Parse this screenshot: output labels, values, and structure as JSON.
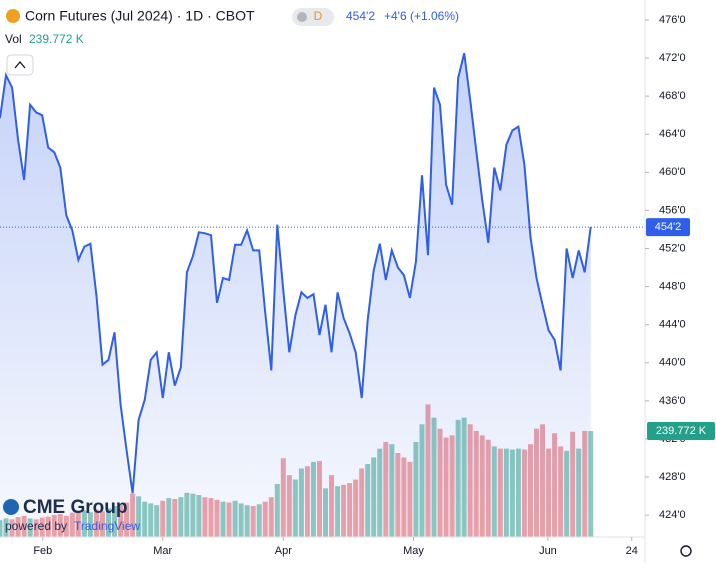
{
  "chart_data": {
    "type": "line",
    "title": "Corn Futures (Jul 2024) · 1D · CBOT",
    "interval_badge": "D",
    "last_price": "454'2",
    "change": "+4'6 (+1.06%)",
    "volume_title": "Vol",
    "volume_last": "239.772 K",
    "watermark": "CME Group",
    "powered_by": "powered by",
    "powered_brand": "TradingView",
    "color": "#2f5ee8",
    "values": [
      465.7,
      470.2,
      468.9,
      463.4,
      459.2,
      467.1,
      466.3,
      466.0,
      462.6,
      462.1,
      460.5,
      455.5,
      453.9,
      450.8,
      452.2,
      452.5,
      447.1,
      439.8,
      440.3,
      443.2,
      435.6,
      430.8,
      426.3,
      434.0,
      436.1,
      440.3,
      441.1,
      436.3,
      441.1,
      437.6,
      439.5,
      449.5,
      451.2,
      453.7,
      453.6,
      453.4,
      446.3,
      448.9,
      448.7,
      452.4,
      452.4,
      453.9,
      451.8,
      451.8,
      445.3,
      439.2,
      454.5,
      447.6,
      441.1,
      445.0,
      447.4,
      446.8,
      447.2,
      442.9,
      446.1,
      441.1,
      447.4,
      444.7,
      443.1,
      441.1,
      436.3,
      444.5,
      449.7,
      452.5,
      448.7,
      451.8,
      450.0,
      449.2,
      446.8,
      450.6,
      459.7,
      451.3,
      468.9,
      467.1,
      458.7,
      456.6,
      469.9,
      472.5,
      467.6,
      462.3,
      457.1,
      452.6,
      460.5,
      458.1,
      462.9,
      464.4,
      464.8,
      460.8,
      453.2,
      448.9,
      446.1,
      443.4,
      442.4,
      439.2,
      452.0,
      448.9,
      451.8,
      449.5,
      454.25
    ],
    "volume": {
      "up_color": "#8fcbbf",
      "down_color": "#f0a3a6",
      "values": [
        38,
        42,
        40,
        45,
        48,
        42,
        40,
        44,
        46,
        50,
        52,
        48,
        55,
        58,
        60,
        56,
        62,
        58,
        65,
        70,
        72,
        78,
        98,
        92,
        80,
        76,
        72,
        82,
        88,
        86,
        90,
        100,
        98,
        95,
        90,
        88,
        84,
        80,
        78,
        82,
        76,
        72,
        70,
        74,
        80,
        90,
        120,
        178,
        140,
        130,
        155,
        160,
        170,
        172,
        110,
        140,
        115,
        118,
        122,
        130,
        155,
        165,
        180,
        200,
        215,
        210,
        190,
        180,
        170,
        215,
        255,
        300,
        270,
        245,
        225,
        230,
        265,
        270,
        255,
        240,
        230,
        220,
        205,
        200,
        200,
        198,
        200,
        198,
        210,
        245,
        255,
        200,
        235,
        205,
        195,
        238,
        200,
        240,
        239.772
      ]
    },
    "xlim": [
      0,
      107
    ],
    "xticks": [
      {
        "value": 7.1,
        "label": "Feb"
      },
      {
        "value": 27,
        "label": "Mar"
      },
      {
        "value": 47,
        "label": "Apr"
      },
      {
        "value": 68.6,
        "label": "May"
      },
      {
        "value": 90.9,
        "label": "Jun"
      },
      {
        "value": 104.8,
        "label": "24"
      }
    ],
    "ylim": [
      421.7,
      478.1
    ],
    "yticks": [
      {
        "value": 424,
        "label": "424'0"
      },
      {
        "value": 428,
        "label": "428'0"
      },
      {
        "value": 432,
        "label": "432'0"
      },
      {
        "value": 436,
        "label": "436'0"
      },
      {
        "value": 440,
        "label": "440'0"
      },
      {
        "value": 444,
        "label": "444'0"
      },
      {
        "value": 448,
        "label": "448'0"
      },
      {
        "value": 452,
        "label": "452'0"
      },
      {
        "value": 456,
        "label": "456'0"
      },
      {
        "value": 460,
        "label": "460'0"
      },
      {
        "value": 464,
        "label": "464'0"
      },
      {
        "value": 468,
        "label": "468'0"
      },
      {
        "value": 472,
        "label": "472'0"
      },
      {
        "value": 476,
        "label": "476'0"
      }
    ]
  }
}
